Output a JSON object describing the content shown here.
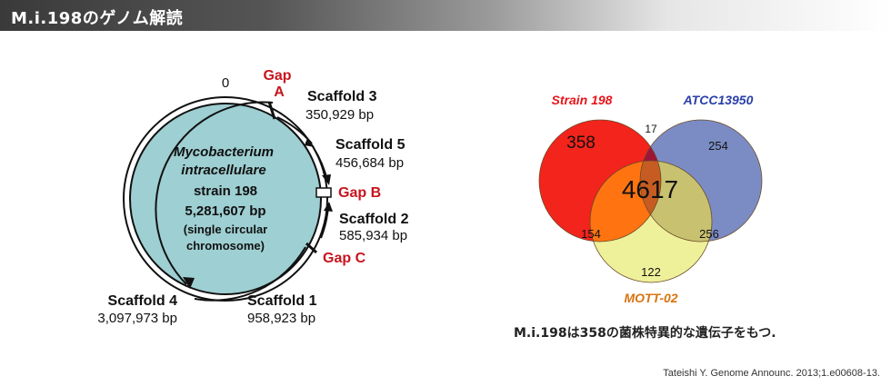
{
  "header": {
    "title": "M.i.198のゲノム解読"
  },
  "genome_map": {
    "origin_label": "0",
    "center": {
      "organism_line1": "Mycobacterium",
      "organism_line2": "intracellulare",
      "strain": "strain 198",
      "size": "5,281,607 bp",
      "note_line1": "(single circular",
      "note_line2": "chromosome)"
    },
    "gaps": [
      {
        "line1": "Gap",
        "line2": "A"
      },
      {
        "line1": "Gap B",
        "line2": ""
      },
      {
        "line1": "Gap C",
        "line2": ""
      }
    ],
    "scaffolds": [
      {
        "name": "Scaffold 3",
        "length": "350,929 bp"
      },
      {
        "name": "Scaffold 5",
        "length": "456,684 bp"
      },
      {
        "name": "Scaffold 2",
        "length": "585,934 bp"
      },
      {
        "name": "Scaffold 1",
        "length": "958,923 bp"
      },
      {
        "name": "Scaffold 4",
        "length": "3,097,973 bp"
      }
    ]
  },
  "venn": {
    "sets": [
      {
        "name": "Strain 198",
        "color": "#e8141a"
      },
      {
        "name": "ATCC13950",
        "color": "#2a3fa8"
      },
      {
        "name": "MOTT-02",
        "color": "#d9730f"
      }
    ],
    "values": {
      "strain_only": "358",
      "atcc_only": "254",
      "mott_only": "122",
      "strain_atcc": "17",
      "strain_mott": "154",
      "atcc_mott": "256",
      "all_three": "4617"
    }
  },
  "caption": "M.i.198は358の菌株特異的な遺伝子をもつ.",
  "citation": "Tateishi Y. Genome Announc. 2013;1.e00608-13."
}
